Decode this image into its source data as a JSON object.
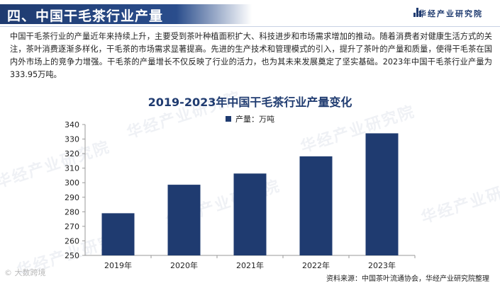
{
  "header": {
    "title": "四、中国干毛茶行业产量",
    "brand": "华经产业研究院"
  },
  "paragraph": "中国干毛茶行业的产量近年来持续上升，主要受到茶叶种植面积扩大、科技进步和市场需求增加的推动。随着消费者对健康生活方式的关注，茶叶消费逐渐多样化，干毛茶的市场需求显著提高。先进的生产技术和管理模式的引入，提升了茶叶的产量和质量，使得干毛茶在国内外市场上的竞争力增强。干毛茶的产量增长不仅反映了行业的活力，也为其未来发展奠定了坚实基础。2023年中国干毛茶行业产量为333.95万吨。",
  "watermark": "华经产业研究院",
  "bottom_left": "© 大数跨境",
  "source": "资料来源：中国茶叶流通协会，华经产业研究院整理",
  "colors": {
    "brand": "#1f3b70",
    "bar": "#1f3b70"
  },
  "chart_data": {
    "type": "bar",
    "title": "2019-2023年中国干毛茶行业产量变化",
    "categories": [
      "2019年",
      "2020年",
      "2021年",
      "2022年",
      "2023年"
    ],
    "series": [
      {
        "name": "产量：万吨",
        "values": [
          279,
          298.6,
          306.3,
          318.1,
          333.95
        ]
      }
    ],
    "ylim": [
      250,
      340
    ],
    "yticks": [
      250,
      260,
      270,
      280,
      290,
      300,
      310,
      320,
      330,
      340
    ],
    "grid": false,
    "legend": "top-center"
  }
}
